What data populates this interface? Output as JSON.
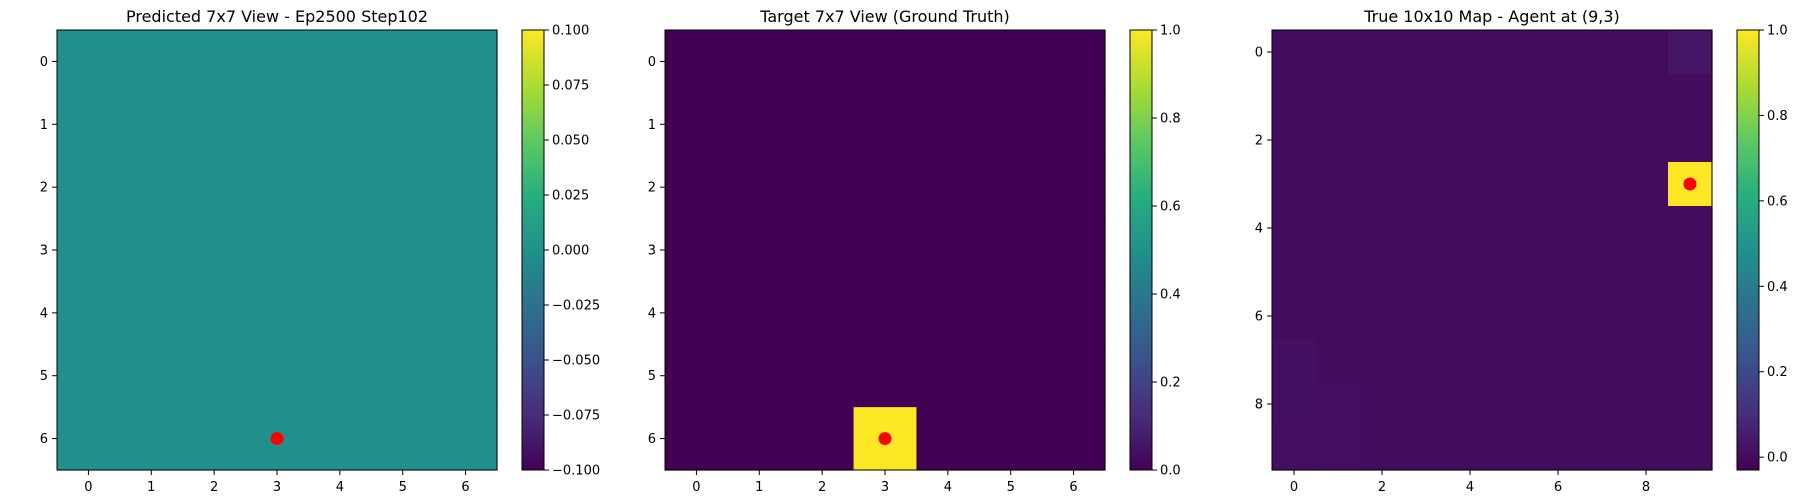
{
  "chart_data": [
    {
      "type": "heatmap",
      "title": "Predicted 7x7 View - Ep2500 Step102",
      "rows": 7,
      "cols": 7,
      "values": [
        [
          0,
          0,
          0,
          0,
          0,
          0,
          0
        ],
        [
          0,
          0,
          0,
          0,
          0,
          0,
          0
        ],
        [
          0,
          0,
          0,
          0,
          0,
          0,
          0
        ],
        [
          0,
          0,
          0,
          0,
          0,
          0,
          0
        ],
        [
          0,
          0,
          0,
          0,
          0,
          0,
          0
        ],
        [
          0,
          0,
          0,
          0,
          0,
          0,
          0
        ],
        [
          0,
          0,
          0,
          0,
          0,
          0,
          0
        ]
      ],
      "xticks": [
        0,
        1,
        2,
        3,
        4,
        5,
        6
      ],
      "yticks": [
        0,
        1,
        2,
        3,
        4,
        5,
        6
      ],
      "marker": {
        "x": 3,
        "y": 6,
        "color": "#ff0000"
      },
      "colorbar": {
        "vmin": -0.1,
        "vmax": 0.1,
        "ticks": [
          "0.100",
          "0.075",
          "0.050",
          "0.025",
          "0.000",
          "−0.025",
          "−0.050",
          "−0.075",
          "−0.100"
        ],
        "tick_values": [
          0.1,
          0.075,
          0.05,
          0.025,
          0,
          -0.025,
          -0.05,
          -0.075,
          -0.1
        ]
      },
      "colormap": "viridis"
    },
    {
      "type": "heatmap",
      "title": "Target 7x7 View (Ground Truth)",
      "rows": 7,
      "cols": 7,
      "values": [
        [
          0,
          0,
          0,
          0,
          0,
          0,
          0
        ],
        [
          0,
          0,
          0,
          0,
          0,
          0,
          0
        ],
        [
          0,
          0,
          0,
          0,
          0,
          0,
          0
        ],
        [
          0,
          0,
          0,
          0,
          0,
          0,
          0
        ],
        [
          0,
          0,
          0,
          0,
          0,
          0,
          0
        ],
        [
          0,
          0,
          0,
          0,
          0,
          0,
          0
        ],
        [
          0,
          0,
          0,
          1,
          0,
          0,
          0
        ]
      ],
      "xticks": [
        0,
        1,
        2,
        3,
        4,
        5,
        6
      ],
      "yticks": [
        0,
        1,
        2,
        3,
        4,
        5,
        6
      ],
      "marker": {
        "x": 3,
        "y": 6,
        "color": "#ff0000"
      },
      "colorbar": {
        "vmin": 0,
        "vmax": 1,
        "ticks": [
          "1.0",
          "0.8",
          "0.6",
          "0.4",
          "0.2",
          "0.0"
        ],
        "tick_values": [
          1,
          0.8,
          0.6,
          0.4,
          0.2,
          0
        ]
      },
      "colormap": "viridis"
    },
    {
      "type": "heatmap",
      "title": "True 10x10 Map - Agent at (9,3)",
      "rows": 10,
      "cols": 10,
      "values": [
        [
          0,
          0,
          0,
          0,
          0,
          0,
          0,
          0,
          0,
          0.03
        ],
        [
          0,
          0,
          0,
          0,
          0,
          0,
          0,
          0,
          0,
          0
        ],
        [
          0,
          0,
          0,
          0,
          0,
          0,
          0,
          0,
          0,
          0
        ],
        [
          0,
          0,
          0,
          0,
          0,
          0,
          0,
          0,
          0,
          1
        ],
        [
          0,
          0,
          0,
          0,
          0,
          0,
          0,
          0,
          0,
          0
        ],
        [
          0,
          0,
          0,
          0,
          0,
          0,
          0,
          0,
          0,
          0
        ],
        [
          0,
          0,
          0,
          0,
          0,
          0,
          0,
          0,
          0,
          0
        ],
        [
          0.015,
          0,
          0,
          0,
          0,
          0,
          0,
          0,
          0,
          0
        ],
        [
          0.015,
          0.01,
          0.005,
          0,
          0,
          0,
          0,
          0,
          0,
          0
        ],
        [
          0.01,
          0.01,
          0,
          0,
          0,
          0,
          0,
          0,
          0,
          0
        ]
      ],
      "xticks": [
        0,
        2,
        4,
        6,
        8
      ],
      "yticks": [
        0,
        2,
        4,
        6,
        8
      ],
      "marker": {
        "x": 9,
        "y": 3,
        "color": "#ff0000"
      },
      "colorbar": {
        "vmin": -0.03,
        "vmax": 1,
        "ticks": [
          "1.0",
          "0.8",
          "0.6",
          "0.4",
          "0.2",
          "0.0"
        ],
        "tick_values": [
          1,
          0.8,
          0.6,
          0.4,
          0.2,
          0
        ]
      },
      "colormap": "viridis"
    }
  ]
}
